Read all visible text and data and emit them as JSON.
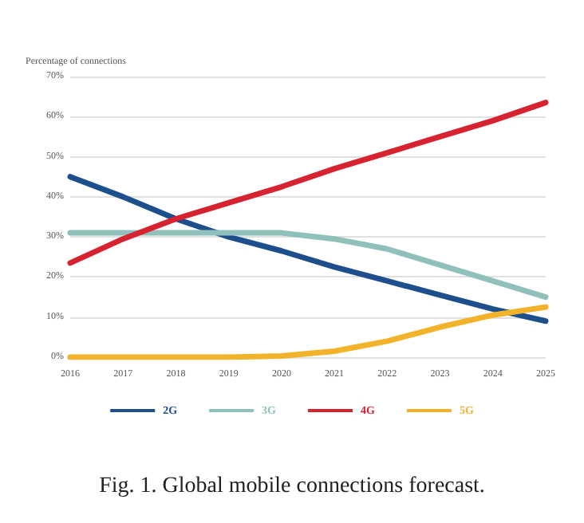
{
  "chart_data": {
    "type": "line",
    "ylabel": "Percentage of connections",
    "categories": [
      "2016",
      "2017",
      "2018",
      "2019",
      "2020",
      "2021",
      "2022",
      "2023",
      "2024",
      "2025"
    ],
    "series": [
      {
        "name": "2G",
        "color": "#1d4f8c",
        "values": [
          45,
          40,
          34.5,
          30,
          26.5,
          22.5,
          19,
          15.5,
          12,
          9
        ]
      },
      {
        "name": "3G",
        "color": "#8fc0bb",
        "values": [
          31,
          31,
          31,
          31,
          31,
          29.5,
          27,
          23,
          19,
          15
        ]
      },
      {
        "name": "4G",
        "color": "#d7232f",
        "values": [
          23.5,
          29.5,
          34.5,
          38.5,
          42.5,
          47,
          51,
          55,
          59,
          63.5
        ]
      },
      {
        "name": "5G",
        "color": "#f2b32b",
        "values": [
          0,
          0,
          0,
          0,
          0.3,
          1.5,
          4,
          7.5,
          10.5,
          12.5
        ]
      }
    ],
    "ylim": [
      0,
      70
    ],
    "yticks": [
      {
        "value": 0,
        "label": "0%"
      },
      {
        "value": 10,
        "label": "10%"
      },
      {
        "value": 20,
        "label": "20%"
      },
      {
        "value": 30,
        "label": "30%"
      },
      {
        "value": 40,
        "label": "40%"
      },
      {
        "value": 50,
        "label": "50%"
      },
      {
        "value": 60,
        "label": "60%"
      },
      {
        "value": 70,
        "label": "70%"
      }
    ],
    "grid": "y",
    "legend": "bottom",
    "marker": "none",
    "line_style": "solid",
    "annotations": [
      "Fig. 1. Global mobile connections forecast."
    ]
  }
}
